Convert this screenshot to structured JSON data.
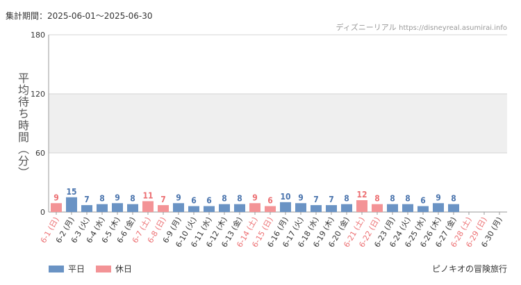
{
  "header": {
    "period": "集計期間：2025-06-01～2025-06-30",
    "source_name": "ディズニーリアル",
    "source_url": "https://disneyreal.asumirai.info"
  },
  "legend": {
    "weekday_label": "平日",
    "holiday_label": "休日"
  },
  "footer": {
    "attraction": "ピノキオの冒険旅行"
  },
  "colors": {
    "weekday": "#6a93c4",
    "holiday": "#f39396",
    "weekday_text": "#4a74ad",
    "holiday_text": "#ec6f72",
    "band": "#efefef"
  },
  "chart_data": {
    "type": "bar",
    "ylabel": "平均待ち時間（分）",
    "ylim": [
      0,
      180
    ],
    "yticks": [
      0,
      60,
      120,
      180
    ],
    "grid": true,
    "legend_position": "bottom-left",
    "categories": [
      "6-1 (日)",
      "6-2 (月)",
      "6-3 (火)",
      "6-4 (水)",
      "6-5 (木)",
      "6-6 (金)",
      "6-7 (土)",
      "6-8 (日)",
      "6-9 (月)",
      "6-10 (火)",
      "6-11 (水)",
      "6-12 (木)",
      "6-13 (金)",
      "6-14 (土)",
      "6-15 (日)",
      "6-16 (月)",
      "6-17 (火)",
      "6-18 (水)",
      "6-19 (木)",
      "6-20 (金)",
      "6-21 (土)",
      "6-22 (日)",
      "6-23 (月)",
      "6-24 (火)",
      "6-25 (水)",
      "6-26 (木)",
      "6-27 (金)",
      "6-28 (土)",
      "6-29 (日)",
      "6-30 (月)"
    ],
    "values": [
      9,
      15,
      7,
      8,
      9,
      8,
      11,
      7,
      9,
      6,
      6,
      8,
      8,
      9,
      6,
      10,
      9,
      7,
      7,
      8,
      12,
      8,
      8,
      8,
      6,
      9,
      8,
      null,
      null,
      null
    ],
    "holiday": [
      true,
      false,
      false,
      false,
      false,
      false,
      true,
      true,
      false,
      false,
      false,
      false,
      false,
      true,
      true,
      false,
      false,
      false,
      false,
      false,
      true,
      true,
      false,
      false,
      false,
      false,
      false,
      true,
      true,
      false
    ]
  }
}
